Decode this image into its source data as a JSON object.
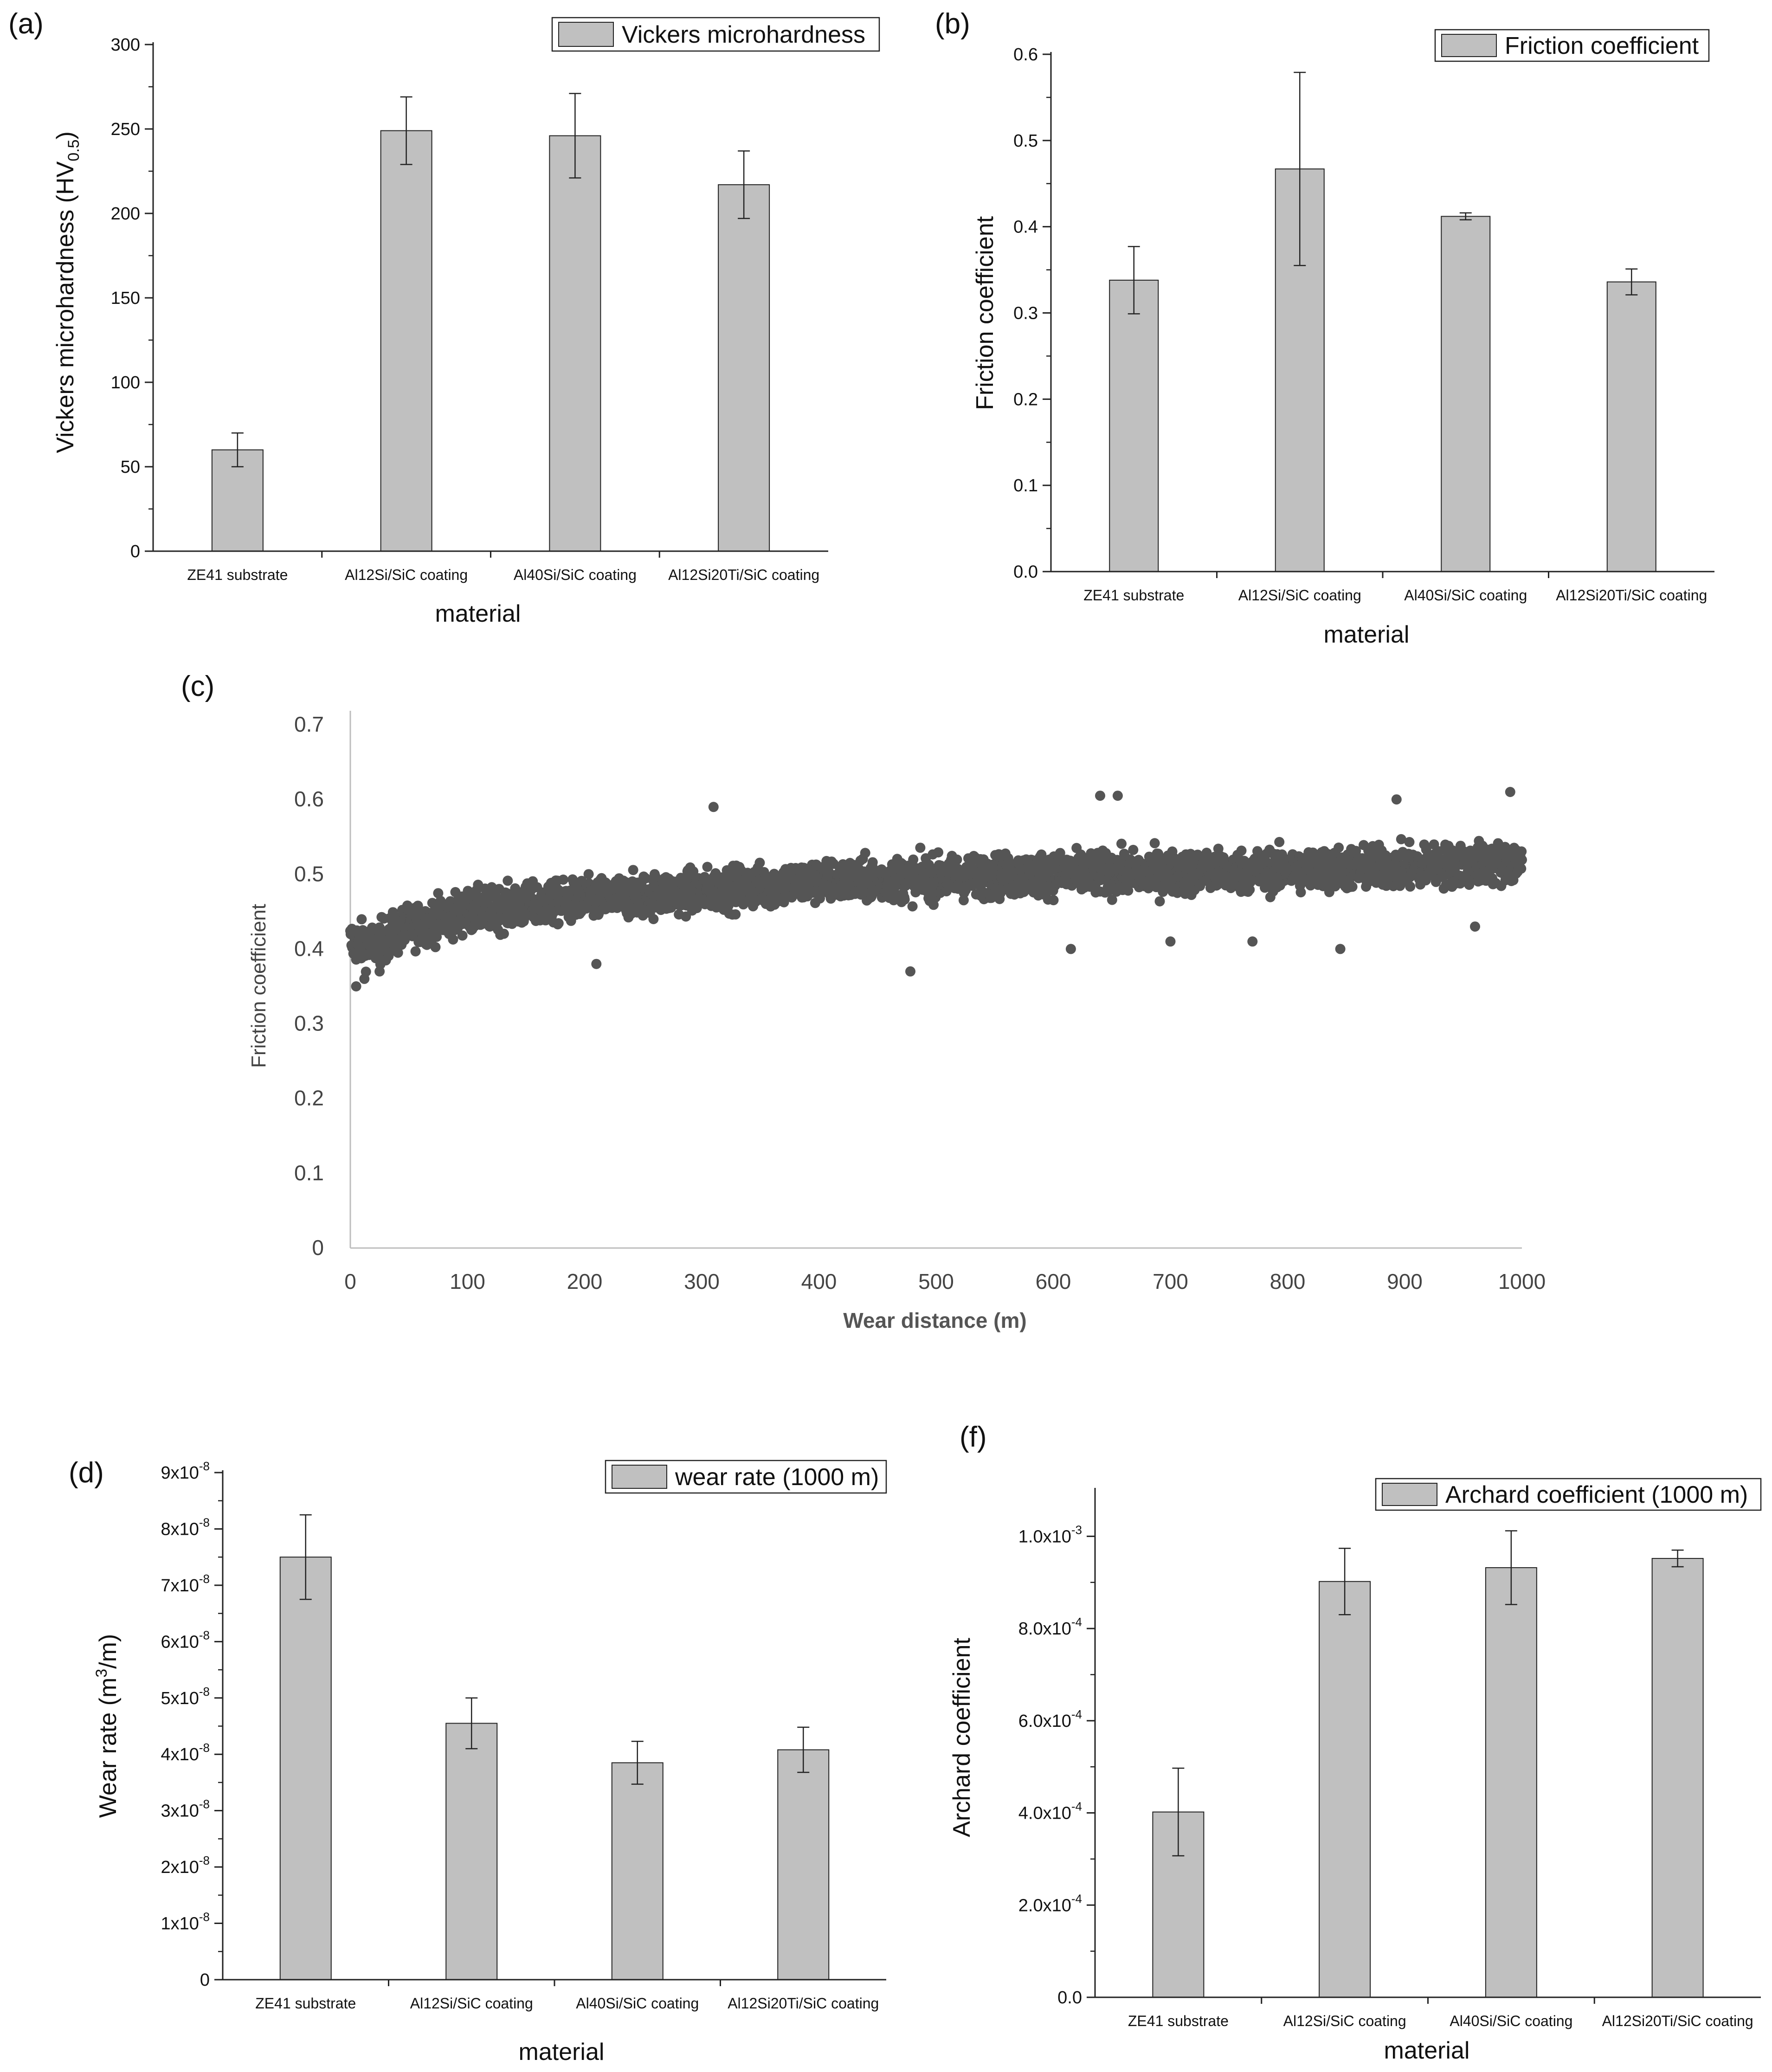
{
  "colors": {
    "bar_fill": "#c0c0c0",
    "bar_stroke": "#222222",
    "axis": "#222222",
    "scatter_point": "#555555",
    "scatter_axis": "#bdbdbd"
  },
  "chart_data": [
    {
      "panel": "(a)",
      "type": "bar",
      "categories": [
        "ZE41 substrate",
        "Al12Si/SiC coating",
        "Al40Si/SiC coating",
        "Al12Si20Ti/SiC coating"
      ],
      "values": [
        60,
        249,
        246,
        217
      ],
      "errors": [
        10,
        20,
        25,
        20
      ],
      "legend": "Vickers microhardness",
      "ylabel": {
        "main": "Vickers microhardness (HV",
        "sub": "0.5",
        "close": ")"
      },
      "xlabel": "material",
      "ylim": [
        0,
        300
      ],
      "yticks": [
        0,
        50,
        100,
        150,
        200,
        250,
        300
      ],
      "ytick_labels": [
        "0",
        "50",
        "100",
        "150",
        "200",
        "250",
        "300"
      ]
    },
    {
      "panel": "(b)",
      "type": "bar",
      "categories": [
        "ZE41 substrate",
        "Al12Si/SiC coating",
        "Al40Si/SiC coating",
        "Al12Si20Ti/SiC coating"
      ],
      "values": [
        0.338,
        0.467,
        0.412,
        0.336
      ],
      "errors": [
        0.039,
        0.112,
        0.004,
        0.015
      ],
      "legend": "Friction coefficient",
      "ylabel": {
        "main": "Friction coefficient"
      },
      "xlabel": "material",
      "ylim": [
        0,
        0.6
      ],
      "yticks": [
        0,
        0.1,
        0.2,
        0.3,
        0.4,
        0.5,
        0.6
      ],
      "ytick_labels": [
        "0.0",
        "0.1",
        "0.2",
        "0.3",
        "0.4",
        "0.5",
        "0.6"
      ]
    },
    {
      "panel": "(c)",
      "type": "scatter",
      "xlabel": "Wear distance (m)",
      "ylabel": "Friction coefficient",
      "xlim": [
        0,
        1000
      ],
      "ylim": [
        0,
        0.7
      ],
      "xticks": [
        0,
        100,
        200,
        300,
        400,
        500,
        600,
        700,
        800,
        900,
        1000
      ],
      "xtick_labels": [
        "0",
        "100",
        "200",
        "300",
        "400",
        "500",
        "600",
        "700",
        "800",
        "900",
        "1000"
      ],
      "yticks": [
        0,
        0.1,
        0.2,
        0.3,
        0.4,
        0.5,
        0.6,
        0.7
      ],
      "ytick_labels": [
        "0",
        "0.1",
        "0.2",
        "0.3",
        "0.4",
        "0.5",
        "0.6",
        "0.7"
      ],
      "trend": [
        [
          0,
          0.41
        ],
        [
          20,
          0.405
        ],
        [
          50,
          0.43
        ],
        [
          100,
          0.45
        ],
        [
          200,
          0.465
        ],
        [
          300,
          0.478
        ],
        [
          400,
          0.49
        ],
        [
          500,
          0.495
        ],
        [
          600,
          0.5
        ],
        [
          700,
          0.502
        ],
        [
          800,
          0.505
        ],
        [
          900,
          0.51
        ],
        [
          1000,
          0.515
        ]
      ],
      "noise": 0.028,
      "n_points": 3000,
      "outliers": [
        [
          5,
          0.35
        ],
        [
          12,
          0.36
        ],
        [
          25,
          0.37
        ],
        [
          210,
          0.38
        ],
        [
          310,
          0.59
        ],
        [
          478,
          0.37
        ],
        [
          615,
          0.4
        ],
        [
          640,
          0.605
        ],
        [
          655,
          0.605
        ],
        [
          700,
          0.41
        ],
        [
          770,
          0.41
        ],
        [
          845,
          0.4
        ],
        [
          893,
          0.6
        ],
        [
          990,
          0.61
        ],
        [
          960,
          0.43
        ]
      ]
    },
    {
      "panel": "(d)",
      "type": "bar",
      "categories": [
        "ZE41 substrate",
        "Al12Si/SiC coating",
        "Al40Si/SiC coating",
        "Al12Si20Ti/SiC coating"
      ],
      "values": [
        7.5e-08,
        4.55e-08,
        3.85e-08,
        4.08e-08
      ],
      "errors": [
        7.5e-09,
        4.5e-09,
        3.8e-09,
        4e-09
      ],
      "legend": "wear rate (1000 m)",
      "ylabel": {
        "main": "Wear rate (m",
        "sup": "3",
        "close": "/m)"
      },
      "xlabel": "material",
      "ylim": [
        0,
        9e-08
      ],
      "yticks": [
        0,
        1e-08,
        2e-08,
        3e-08,
        4e-08,
        5e-08,
        6e-08,
        7e-08,
        8e-08,
        9e-08
      ],
      "ytick_labels": [
        "0",
        "1x10",
        "2x10",
        "3x10",
        "4x10",
        "5x10",
        "6x10",
        "7x10",
        "8x10",
        "9x10"
      ],
      "ytick_exps": [
        "",
        "-8",
        "-8",
        "-8",
        "-8",
        "-8",
        "-8",
        "-8",
        "-8",
        "-8"
      ]
    },
    {
      "panel": "(f)",
      "type": "bar",
      "categories": [
        "ZE41 substrate",
        "Al12Si/SiC coating",
        "Al40Si/SiC coating",
        "Al12Si20Ti/SiC coating"
      ],
      "values": [
        0.000402,
        0.000902,
        0.000932,
        0.000952
      ],
      "errors": [
        9.5e-05,
        7.2e-05,
        8e-05,
        1.8e-05
      ],
      "legend": "Archard coefficient (1000 m)",
      "ylabel": {
        "main": "Archard coefficient"
      },
      "xlabel": "material",
      "ylim": [
        0,
        0.0011
      ],
      "yticks": [
        0,
        0.0002,
        0.0004,
        0.0006,
        0.0008,
        0.001
      ],
      "ytick_labels": [
        "0.0",
        "2.0x10",
        "4.0x10",
        "6.0x10",
        "8.0x10",
        "1.0x10"
      ],
      "ytick_exps": [
        "",
        "-4",
        "-4",
        "-4",
        "-4",
        "-3"
      ]
    }
  ]
}
